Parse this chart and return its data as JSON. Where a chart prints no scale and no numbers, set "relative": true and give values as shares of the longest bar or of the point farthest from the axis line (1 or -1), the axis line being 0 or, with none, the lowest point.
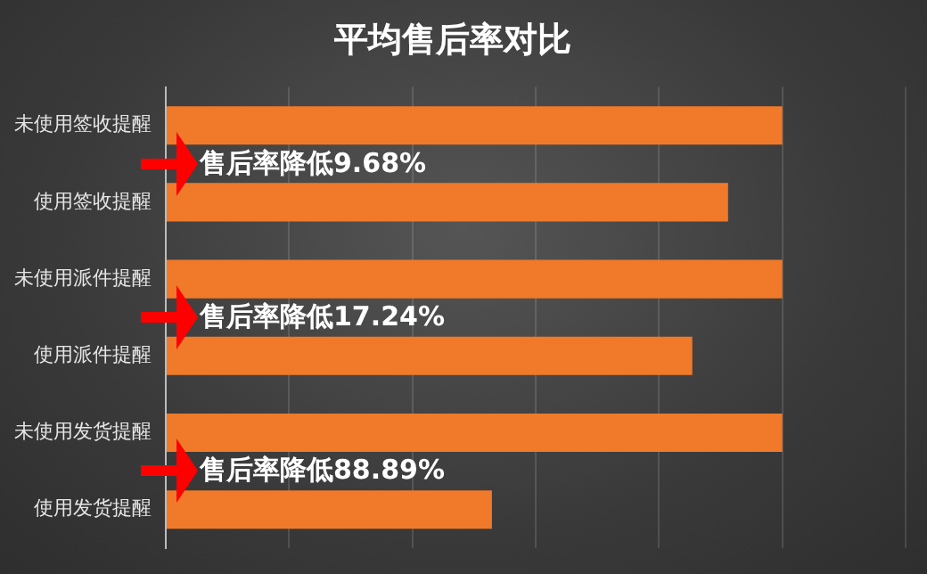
{
  "chart_data": {
    "type": "bar",
    "orientation": "horizontal",
    "relative": true,
    "title": "平均售后率对比",
    "categories": [
      "未使用签收提醒",
      "使用签收提醒",
      "未使用派件提醒",
      "使用派件提醒",
      "未使用发货提醒",
      "使用发货提醒"
    ],
    "values": [
      1,
      0.912,
      1,
      0.854,
      1,
      0.529
    ],
    "color": "#f07a2a",
    "grid": "x",
    "annotations": [
      "售后率降低9.68%",
      "售后率降低17.24%",
      "售后率降低88.89%"
    ]
  }
}
